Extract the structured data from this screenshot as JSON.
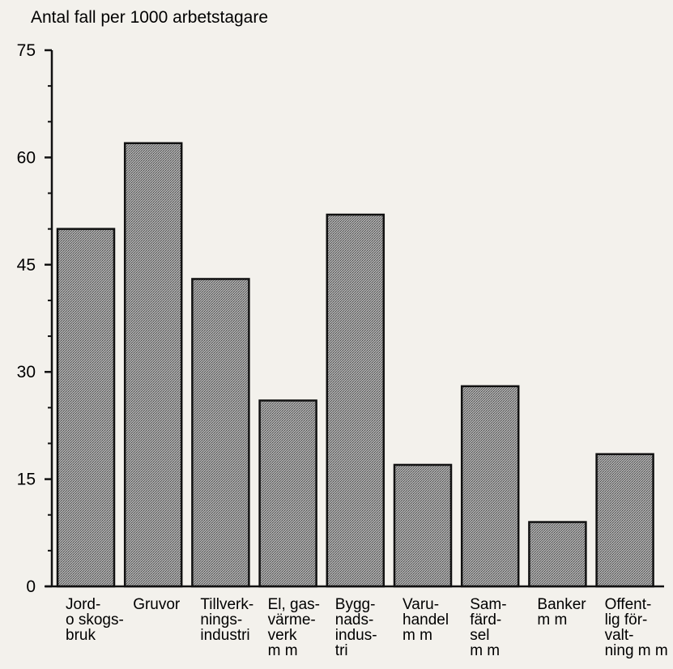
{
  "chart_data": {
    "type": "bar",
    "title": "",
    "ylabel": "Antal fall per 1000 arbetstagare",
    "xlabel": "",
    "ylim": [
      0,
      75
    ],
    "yticks": [
      0,
      15,
      30,
      45,
      60,
      75
    ],
    "grid": false,
    "categories": [
      [
        "Jord-",
        "o skogs-",
        "bruk"
      ],
      [
        "Gruvor"
      ],
      [
        "Tillverk-",
        "nings-",
        "industri"
      ],
      [
        "El, gas-",
        "värme-",
        "verk",
        "m m"
      ],
      [
        "Bygg-",
        "nads-",
        "indus-",
        "tri"
      ],
      [
        "Varu-",
        "handel",
        "m m"
      ],
      [
        "Sam-",
        "färd-",
        "sel",
        "m m"
      ],
      [
        "Banker",
        "m m"
      ],
      [
        "Offent-",
        "lig för-",
        "valt-",
        "ning m m"
      ]
    ],
    "values": [
      50,
      62,
      43,
      26,
      52,
      17,
      28,
      9,
      18.5
    ],
    "colors": {
      "bar_fill": "#9a9a9a",
      "bar_stroke": "#111111",
      "axis": "#111111"
    }
  }
}
